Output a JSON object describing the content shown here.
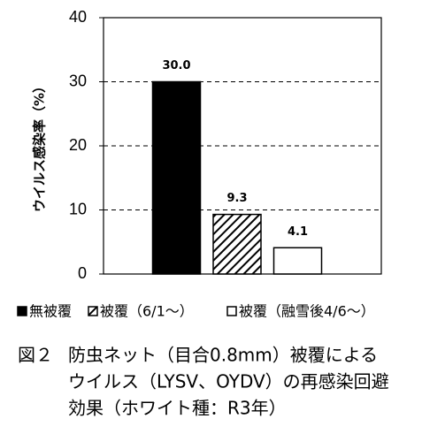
{
  "chart_data": {
    "type": "bar",
    "y_label": "ウイルス感染率（%）",
    "categories": [
      "無被覆",
      "被覆（6/1～）",
      "被覆（融雪後4/6～）"
    ],
    "values": [
      30.0,
      9.3,
      4.1
    ],
    "value_labels": [
      "30.0",
      "9.3",
      "4.1"
    ],
    "fills": [
      "solid",
      "hatch",
      "empty"
    ],
    "color": "#000000",
    "ylim": [
      0,
      40
    ],
    "yticks": [
      0,
      10,
      20,
      30,
      40
    ],
    "grid": true
  },
  "caption": {
    "label": "図２",
    "lines": [
      "防虫ネット（目合0.8mm）被覆による",
      "ウイルス（LYSV、OYDV）の再感染回避",
      "効果（ホワイト種：R3年）"
    ]
  }
}
